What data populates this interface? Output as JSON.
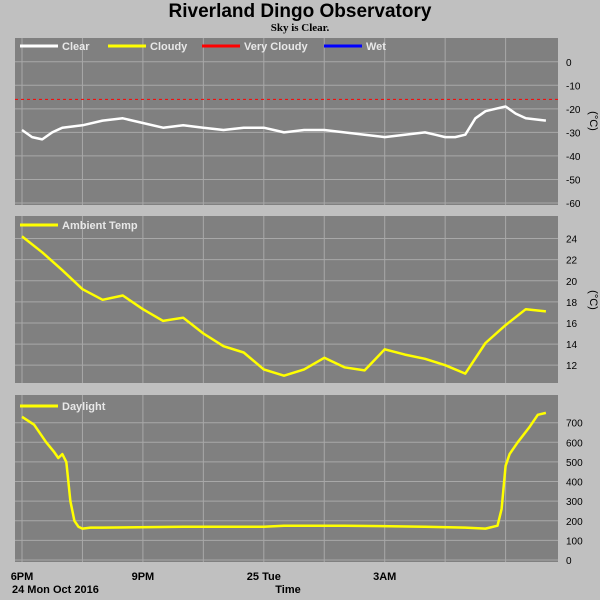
{
  "title": "Riverland Dingo Observatory",
  "subtitle": "Sky is Clear.",
  "colors": {
    "panel_bg": "#808080",
    "page_bg": "#c0c0c0",
    "grid": "#a8a8a8",
    "clear": "#ffffff",
    "cloudy": "#ffff00",
    "very_cloudy": "#ff0000",
    "wet": "#0000ff"
  },
  "x_axis": {
    "label": "Time",
    "date_label": "24 Mon Oct 2016",
    "ticks": [
      "6PM",
      "9PM",
      "25 Tue",
      "3AM"
    ]
  },
  "chart_data": [
    {
      "type": "line",
      "name": "cloud",
      "ylabel": "(°C)",
      "ylim": [
        -60,
        5
      ],
      "yticks": [
        0,
        -10,
        -20,
        -30,
        -40,
        -50,
        -60
      ],
      "legend": [
        "Clear",
        "Cloudy",
        "Very Cloudy",
        "Wet"
      ],
      "threshold_very_cloudy": -16,
      "x_hours": [
        0,
        0.25,
        0.5,
        0.75,
        1,
        1.5,
        2,
        2.5,
        3,
        3.5,
        4,
        4.5,
        5,
        5.5,
        6,
        6.25,
        6.5,
        7,
        7.5,
        8,
        8.5,
        9,
        9.5,
        10,
        10.25,
        10.5,
        10.75,
        11,
        11.25,
        11.5,
        11.75,
        12,
        12.25,
        12.5,
        13
      ],
      "values": [
        -29,
        -32,
        -33,
        -30,
        -28,
        -27,
        -25,
        -24,
        -26,
        -28,
        -27,
        -28,
        -29,
        -28,
        -28,
        -29,
        -30,
        -29,
        -29,
        -30,
        -31,
        -32,
        -31,
        -30,
        -31,
        -32,
        -32,
        -31,
        -24,
        -21,
        -20,
        -19,
        -22,
        -24,
        -25
      ]
    },
    {
      "type": "line",
      "name": "ambient",
      "legend": [
        "Ambient Temp"
      ],
      "ylabel": "(°C)",
      "ylim": [
        10.5,
        25
      ],
      "yticks": [
        24,
        22,
        20,
        18,
        16,
        14,
        12
      ],
      "x_hours": [
        0,
        0.5,
        1,
        1.5,
        2,
        2.5,
        3,
        3.5,
        4,
        4.5,
        5,
        5.5,
        6,
        6.5,
        7,
        7.5,
        8,
        8.5,
        9,
        9.5,
        10,
        10.5,
        11,
        11.5,
        12,
        12.5,
        13
      ],
      "values": [
        24.2,
        22.7,
        21,
        19.2,
        18.2,
        18.6,
        17.3,
        16.2,
        16.5,
        15.0,
        13.8,
        13.2,
        11.6,
        11,
        11.6,
        12.7,
        11.8,
        11.5,
        13.5,
        13.0,
        12.6,
        12.0,
        11.2,
        14.1,
        15.8,
        17.3,
        17.1
      ]
    },
    {
      "type": "line",
      "name": "daylight",
      "legend": [
        "Daylight"
      ],
      "ylim": [
        0,
        780
      ],
      "yticks": [
        700,
        600,
        500,
        400,
        300,
        200,
        100,
        0
      ],
      "x_hours": [
        0,
        0.3,
        0.6,
        0.8,
        0.9,
        1.0,
        1.1,
        1.2,
        1.3,
        1.4,
        1.5,
        1.7,
        2.0,
        4,
        6,
        6.5,
        8,
        10,
        11,
        11.5,
        11.8,
        11.9,
        12.0,
        12.1,
        12.3,
        12.6,
        12.8,
        13
      ],
      "values": [
        730,
        690,
        600,
        550,
        520,
        540,
        500,
        300,
        200,
        170,
        160,
        165,
        165,
        170,
        170,
        175,
        175,
        170,
        165,
        160,
        175,
        260,
        480,
        540,
        600,
        680,
        740,
        750
      ]
    }
  ]
}
